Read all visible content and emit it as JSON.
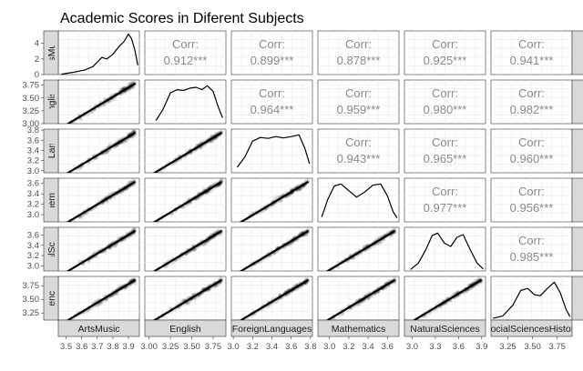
{
  "chart_data": {
    "type": "scatter",
    "title": "Academic Scores in Diferent Subjects",
    "variables": [
      "ArtsMusic",
      "English",
      "ForeignLanguages",
      "Mathematics",
      "NaturalSciences",
      "SocialSciencesHistory"
    ],
    "row_strip_labels": [
      "ArtsMusic",
      "English",
      "ForeignLanguages",
      "Mathematics",
      "NaturalSciences",
      "SocialSciencesHistory"
    ],
    "x_ticks": [
      [
        "3.5",
        "3.6",
        "3.7",
        "3.8",
        "3.9"
      ],
      [
        "3.00",
        "3.25",
        "3.50",
        "3.75"
      ],
      [
        "3.0",
        "3.2",
        "3.4",
        "3.6",
        "3.8"
      ],
      [
        "3.0",
        "3.2",
        "3.4",
        "3.6"
      ],
      [
        "3.0",
        "3.3",
        "3.6",
        "3.9"
      ],
      [
        "3.25",
        "3.50",
        "3.75"
      ]
    ],
    "x_ranges": [
      [
        3.45,
        3.97
      ],
      [
        2.95,
        3.9
      ],
      [
        2.98,
        3.82
      ],
      [
        2.88,
        3.72
      ],
      [
        2.9,
        3.95
      ],
      [
        3.08,
        3.9
      ]
    ],
    "y_ticks": [
      [
        "0",
        "2",
        "4"
      ],
      [
        "3.00",
        "3.25",
        "3.50",
        "3.75"
      ],
      [
        "3.0",
        "3.2",
        "3.4",
        "3.6",
        "3.8"
      ],
      [
        "3.0",
        "3.2",
        "3.4",
        "3.6"
      ],
      [
        "3.0",
        "3.2",
        "3.4",
        "3.6"
      ],
      [
        "3.25",
        "3.50",
        "3.75"
      ]
    ],
    "y_ranges": [
      [
        0,
        5.6
      ],
      [
        3.0,
        3.85
      ],
      [
        2.96,
        3.82
      ],
      [
        2.86,
        3.7
      ],
      [
        2.9,
        3.75
      ],
      [
        3.12,
        3.92
      ]
    ],
    "corr_label": "Corr:",
    "correlations": [
      {
        "row": 0,
        "col": 1,
        "value": "0.912***"
      },
      {
        "row": 0,
        "col": 2,
        "value": "0.899***"
      },
      {
        "row": 0,
        "col": 3,
        "value": "0.878***"
      },
      {
        "row": 0,
        "col": 4,
        "value": "0.925***"
      },
      {
        "row": 0,
        "col": 5,
        "value": "0.941***"
      },
      {
        "row": 1,
        "col": 2,
        "value": "0.964***"
      },
      {
        "row": 1,
        "col": 3,
        "value": "0.959***"
      },
      {
        "row": 1,
        "col": 4,
        "value": "0.980***"
      },
      {
        "row": 1,
        "col": 5,
        "value": "0.982***"
      },
      {
        "row": 2,
        "col": 3,
        "value": "0.943***"
      },
      {
        "row": 2,
        "col": 4,
        "value": "0.965***"
      },
      {
        "row": 2,
        "col": 5,
        "value": "0.960***"
      },
      {
        "row": 3,
        "col": 4,
        "value": "0.977***"
      },
      {
        "row": 3,
        "col": 5,
        "value": "0.956***"
      },
      {
        "row": 4,
        "col": 5,
        "value": "0.985***"
      }
    ],
    "density_curves": [
      [
        [
          3.47,
          0.05
        ],
        [
          3.55,
          0.3
        ],
        [
          3.62,
          0.6
        ],
        [
          3.67,
          1.0
        ],
        [
          3.7,
          1.6
        ],
        [
          3.73,
          2.2
        ],
        [
          3.76,
          2.0
        ],
        [
          3.8,
          2.6
        ],
        [
          3.84,
          3.6
        ],
        [
          3.87,
          4.2
        ],
        [
          3.9,
          5.2
        ],
        [
          3.92,
          4.6
        ],
        [
          3.94,
          3.2
        ],
        [
          3.96,
          1.2
        ]
      ],
      [
        [
          3.08,
          0.08
        ],
        [
          3.16,
          0.35
        ],
        [
          3.25,
          0.78
        ],
        [
          3.33,
          0.86
        ],
        [
          3.4,
          0.84
        ],
        [
          3.48,
          0.9
        ],
        [
          3.55,
          0.92
        ],
        [
          3.62,
          0.86
        ],
        [
          3.68,
          0.96
        ],
        [
          3.75,
          0.82
        ],
        [
          3.81,
          0.42
        ],
        [
          3.86,
          0.15
        ]
      ],
      [
        [
          3.04,
          0.12
        ],
        [
          3.12,
          0.35
        ],
        [
          3.2,
          0.7
        ],
        [
          3.28,
          0.78
        ],
        [
          3.36,
          0.76
        ],
        [
          3.44,
          0.8
        ],
        [
          3.52,
          0.77
        ],
        [
          3.6,
          0.8
        ],
        [
          3.68,
          0.84
        ],
        [
          3.74,
          0.55
        ],
        [
          3.79,
          0.2
        ]
      ],
      [
        [
          2.92,
          0.12
        ],
        [
          2.98,
          0.55
        ],
        [
          3.05,
          0.9
        ],
        [
          3.12,
          0.95
        ],
        [
          3.2,
          0.78
        ],
        [
          3.28,
          0.62
        ],
        [
          3.36,
          0.74
        ],
        [
          3.45,
          0.92
        ],
        [
          3.53,
          0.95
        ],
        [
          3.6,
          0.65
        ],
        [
          3.66,
          0.25
        ],
        [
          3.7,
          0.1
        ]
      ],
      [
        [
          2.98,
          0.04
        ],
        [
          3.08,
          0.2
        ],
        [
          3.18,
          0.55
        ],
        [
          3.26,
          0.9
        ],
        [
          3.33,
          0.96
        ],
        [
          3.42,
          0.7
        ],
        [
          3.5,
          0.62
        ],
        [
          3.58,
          0.85
        ],
        [
          3.66,
          0.92
        ],
        [
          3.75,
          0.55
        ],
        [
          3.84,
          0.2
        ],
        [
          3.92,
          0.05
        ]
      ],
      [
        [
          3.1,
          0.04
        ],
        [
          3.2,
          0.1
        ],
        [
          3.3,
          0.35
        ],
        [
          3.38,
          0.7
        ],
        [
          3.45,
          0.75
        ],
        [
          3.52,
          0.6
        ],
        [
          3.58,
          0.58
        ],
        [
          3.65,
          0.75
        ],
        [
          3.72,
          0.9
        ],
        [
          3.78,
          0.65
        ],
        [
          3.84,
          0.25
        ],
        [
          3.88,
          0.08
        ]
      ]
    ]
  }
}
